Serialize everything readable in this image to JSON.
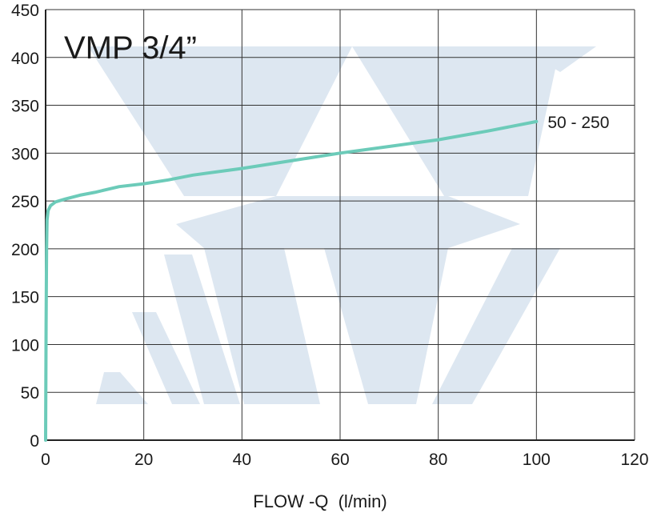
{
  "chart_data": {
    "type": "line",
    "title": "VMP 3/4”",
    "xlabel": "FLOW -Q  (l/min)",
    "ylabel": "",
    "xlim": [
      0,
      120
    ],
    "ylim": [
      0,
      450
    ],
    "x_ticks": [
      "0",
      "20",
      "40",
      "60",
      "80",
      "100",
      "120"
    ],
    "y_ticks": [
      "0",
      "50",
      "100",
      "150",
      "200",
      "250",
      "300",
      "350",
      "400",
      "450"
    ],
    "grid": true,
    "series": [
      {
        "name": "50 - 250",
        "color": "#6ccbb9",
        "x": [
          0,
          0.1,
          0.2,
          0.3,
          0.5,
          1,
          2,
          4,
          7,
          10,
          15,
          20,
          25,
          30,
          40,
          50,
          60,
          70,
          80,
          90,
          100
        ],
        "y": [
          0,
          120,
          200,
          230,
          240,
          245,
          249,
          252,
          256,
          259,
          265,
          268,
          272,
          277,
          284,
          292,
          300,
          307,
          314,
          323,
          333
        ]
      }
    ]
  },
  "watermark": {
    "color": "#dde7f1",
    "shape": "logo-chevrons"
  }
}
